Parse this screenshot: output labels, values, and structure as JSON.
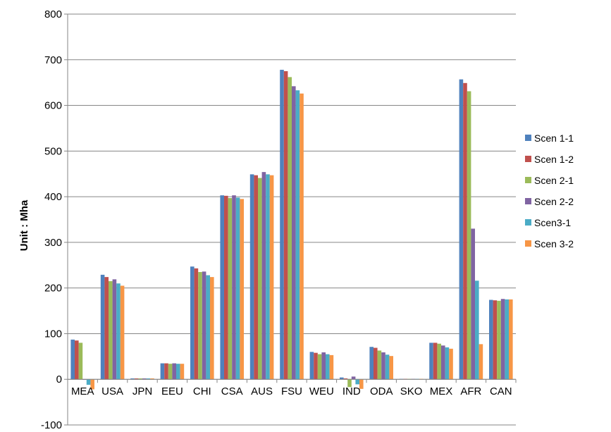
{
  "chart_data": {
    "type": "bar",
    "title": "",
    "xlabel": "",
    "ylabel": "Unit : Mha",
    "ylim": [
      -100,
      800
    ],
    "yticks": [
      -100,
      0,
      100,
      200,
      300,
      400,
      500,
      600,
      700,
      800
    ],
    "grid": true,
    "legend_position": "right",
    "categories": [
      "MEA",
      "USA",
      "JPN",
      "EEU",
      "CHI",
      "CSA",
      "AUS",
      "FSU",
      "WEU",
      "IND",
      "ODA",
      "SKO",
      "MEX",
      "AFR",
      "CAN"
    ],
    "series": [
      {
        "name": "Scen 1-1",
        "color": "#4F81BD",
        "values": [
          87,
          229,
          2,
          35,
          247,
          403,
          449,
          678,
          60,
          4,
          71,
          1,
          80,
          657,
          174
        ]
      },
      {
        "name": "Scen 1-2",
        "color": "#C0504D",
        "values": [
          85,
          224,
          2,
          35,
          243,
          402,
          447,
          675,
          58,
          2,
          69,
          1,
          80,
          649,
          173
        ]
      },
      {
        "name": "Scen 2-1",
        "color": "#9BBB59",
        "values": [
          80,
          215,
          2,
          34,
          235,
          397,
          441,
          662,
          55,
          -17,
          63,
          1,
          78,
          631,
          172
        ]
      },
      {
        "name": "Scen 2-2",
        "color": "#8064A2",
        "values": [
          0,
          219,
          2,
          35,
          236,
          403,
          454,
          642,
          59,
          6,
          59,
          1,
          74,
          330,
          176
        ]
      },
      {
        "name": "Scen3-1",
        "color": "#4BACC6",
        "values": [
          -12,
          210,
          2,
          34,
          228,
          398,
          449,
          633,
          55,
          -11,
          54,
          1,
          70,
          216,
          175
        ]
      },
      {
        "name": "Scen 3-2",
        "color": "#F79646",
        "values": [
          -22,
          205,
          2,
          34,
          224,
          395,
          447,
          626,
          53,
          -21,
          51,
          1,
          67,
          77,
          175
        ]
      }
    ]
  }
}
